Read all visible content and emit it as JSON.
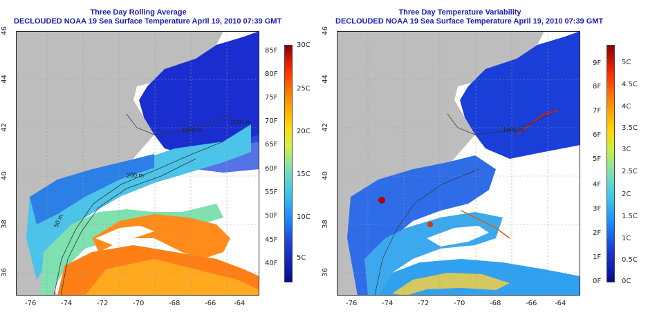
{
  "left": {
    "title1": "Three Day Rolling Average",
    "title2": "DECLOUDED NOAA 19 Sea Surface Temperature April 19, 2010 07:39 GMT",
    "lon_ticks": [
      "-76",
      "-74",
      "-72",
      "-70",
      "-68",
      "-66",
      "-64"
    ],
    "lat_ticks": [
      "36",
      "38",
      "40",
      "42",
      "44",
      "46"
    ],
    "depth_labels": [
      "50 m",
      "200 m",
      "1000 m",
      "2000 m"
    ],
    "cb_f": [
      "85F",
      "80F",
      "75F",
      "70F",
      "65F",
      "60F",
      "55F",
      "50F",
      "45F",
      "40F"
    ],
    "cb_c": [
      "30C",
      "25C",
      "20C",
      "15C",
      "10C",
      "5C"
    ]
  },
  "right": {
    "title1": "Three Day Temperature Variability",
    "title2": "DECLOUDED NOAA 19 Sea Surface Temperature April 19, 2010 07:39 GMT",
    "lon_ticks": [
      "-76",
      "-74",
      "-72",
      "-70",
      "-68",
      "-66",
      "-64"
    ],
    "lat_ticks": [
      "36",
      "38",
      "40",
      "42",
      "44",
      "46"
    ],
    "depth_labels": [
      "1000 m"
    ],
    "cb_f": [
      "9F",
      "8F",
      "7F",
      "6F",
      "5F",
      "4F",
      "3F",
      "2F",
      "1F",
      "0F"
    ],
    "cb_c": [
      "5C",
      "4.5C",
      "4C",
      "3.5C",
      "3C",
      "2.5C",
      "2C",
      "1.5C",
      "1C",
      "0.5C",
      "0C"
    ]
  },
  "colors": {
    "land": "#bdbdbd",
    "title": "#1a1ab8",
    "deep_blue": "#1420c8",
    "cloud": "#ffffff"
  }
}
